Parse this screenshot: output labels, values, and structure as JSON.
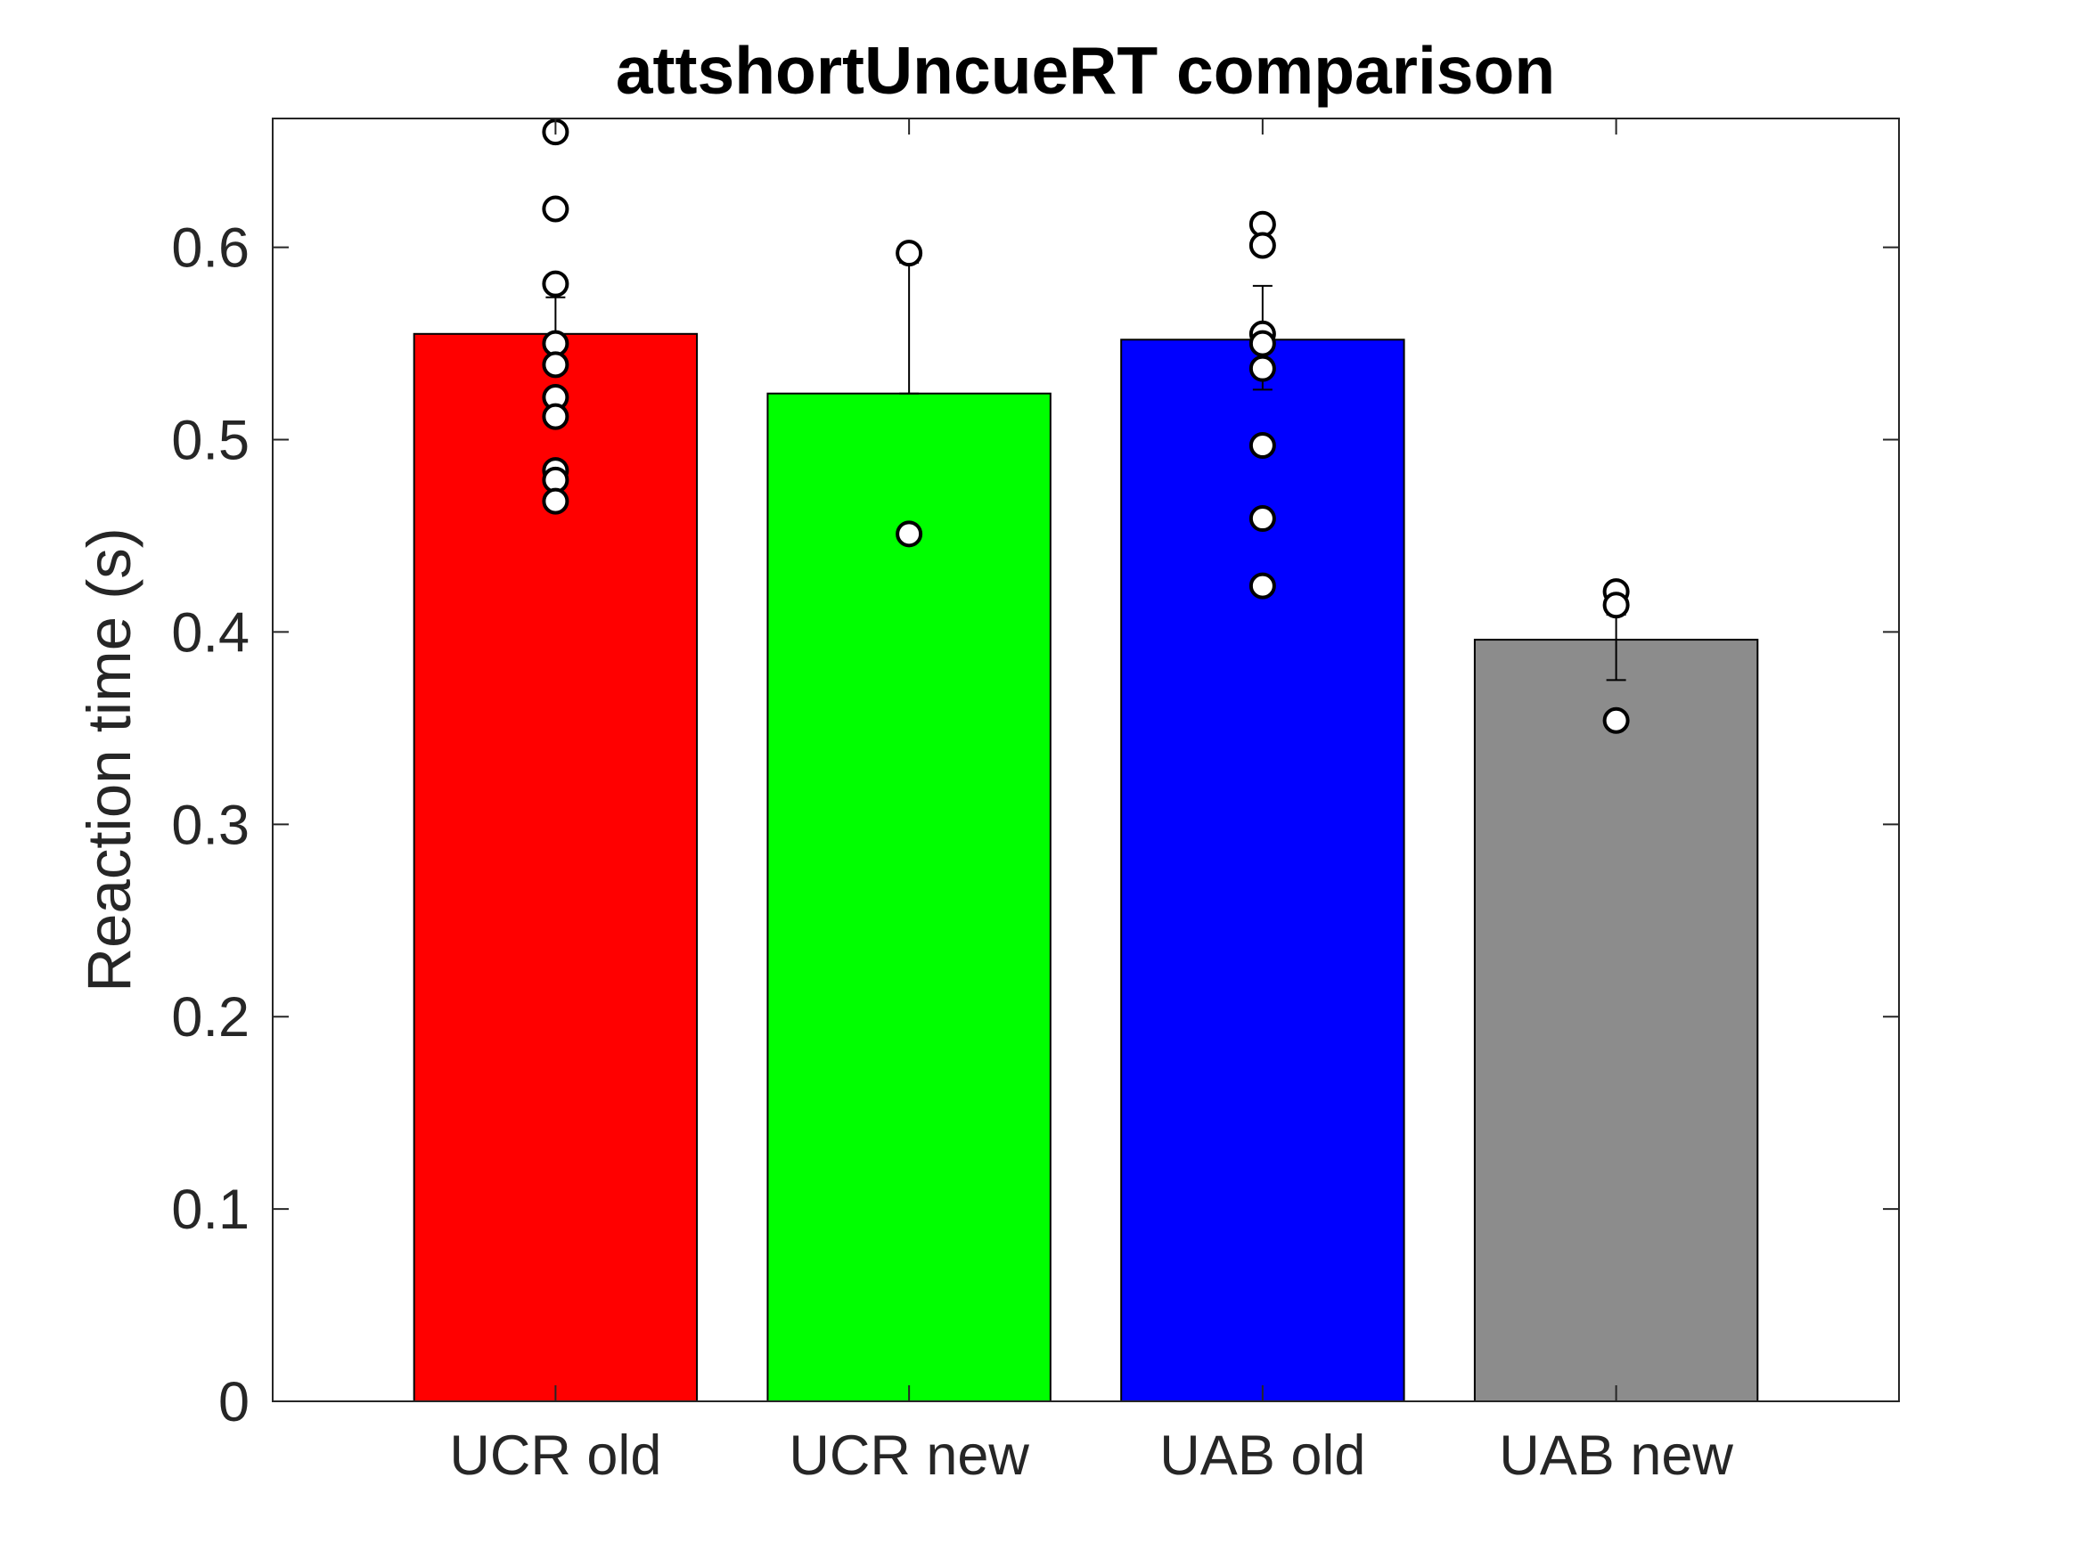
{
  "chart_data": {
    "type": "bar",
    "title": "attshortUncueRT comparison",
    "xlabel": "",
    "ylabel": "Reaction time (s)",
    "ylim": [
      0,
      0.667
    ],
    "yticks": [
      "0",
      "0.1",
      "0.2",
      "0.3",
      "0.4",
      "0.5",
      "0.6"
    ],
    "categories": [
      "UCR old",
      "UCR new",
      "UAB old",
      "UAB new"
    ],
    "values": [
      0.555,
      0.524,
      0.552,
      0.396
    ],
    "error_upper": [
      0.574,
      0.592,
      0.58,
      0.409
    ],
    "error_lower": [
      0.536,
      0.524,
      0.526,
      0.375
    ],
    "colors": [
      "#ff0000",
      "#00ff00",
      "#0000ff",
      "#8c8c8c"
    ],
    "points": [
      [
        0.66,
        0.62,
        0.581,
        0.55,
        0.539,
        0.522,
        0.512,
        0.484,
        0.479,
        0.468
      ],
      [
        0.597,
        0.451
      ],
      [
        0.612,
        0.601,
        0.555,
        0.55,
        0.537,
        0.497,
        0.459,
        0.424
      ],
      [
        0.421,
        0.414,
        0.354
      ]
    ],
    "grid": false,
    "legend": "none"
  }
}
